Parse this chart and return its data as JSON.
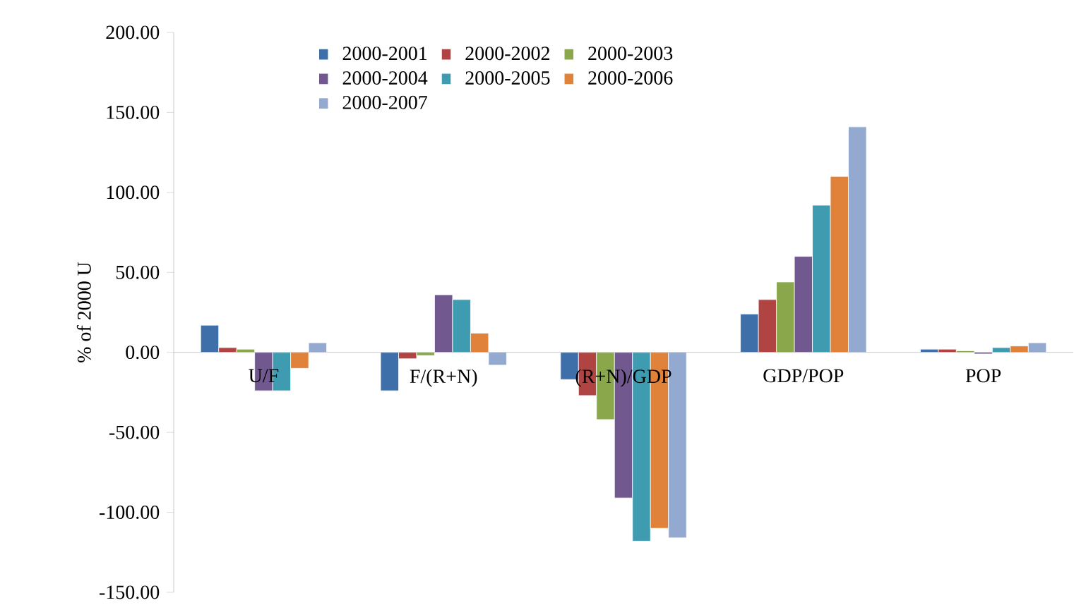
{
  "chart_data": {
    "type": "bar",
    "ylabel": "% of 2000 U",
    "categories": [
      "U/F",
      "F/(R+N)",
      "(R+N)/GDP",
      "GDP/POP",
      "POP"
    ],
    "ylim": [
      -150,
      200
    ],
    "yticks": [
      {
        "value": -150,
        "label": "-150.00"
      },
      {
        "value": -100,
        "label": "-100.00"
      },
      {
        "value": -50,
        "label": "-50.00"
      },
      {
        "value": 0,
        "label": "0.00"
      },
      {
        "value": 50,
        "label": "50.00"
      },
      {
        "value": 100,
        "label": "100.00"
      },
      {
        "value": 150,
        "label": "150.00"
      },
      {
        "value": 200,
        "label": "200.00"
      }
    ],
    "legend": "top",
    "grid": false,
    "series": [
      {
        "name": "2000-2001",
        "color": "#3e6fa8",
        "values": [
          17,
          -24,
          -17,
          24,
          2
        ]
      },
      {
        "name": "2000-2002",
        "color": "#b04442",
        "values": [
          3,
          -4,
          -27,
          33,
          2
        ]
      },
      {
        "name": "2000-2003",
        "color": "#8aa84b",
        "values": [
          2,
          -2,
          -42,
          44,
          1
        ]
      },
      {
        "name": "2000-2004",
        "color": "#71588f",
        "values": [
          -24,
          36,
          -91,
          60,
          -1
        ]
      },
      {
        "name": "2000-2005",
        "color": "#3f9bb0",
        "values": [
          -24,
          33,
          -118,
          92,
          3
        ]
      },
      {
        "name": "2000-2006",
        "color": "#e0823a",
        "values": [
          -10,
          12,
          -110,
          110,
          4
        ]
      },
      {
        "name": "2000-2007",
        "color": "#93a9cf",
        "values": [
          6,
          -8,
          -116,
          141,
          6
        ]
      }
    ]
  }
}
